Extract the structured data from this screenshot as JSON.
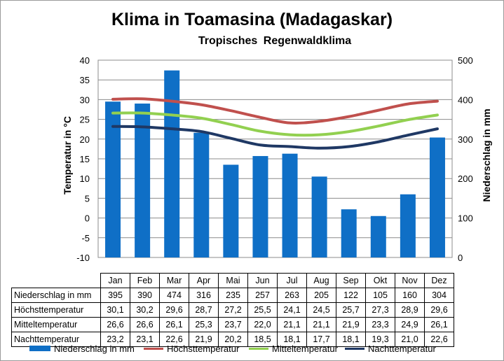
{
  "chart_data": {
    "type": "bar+line",
    "title": "Klima in Toamasina (Madagaskar)",
    "subtitle": "Tropisches Regenwaldklima",
    "categories": [
      "Jan",
      "Feb",
      "Mar",
      "Apr",
      "Mai",
      "Jun",
      "Jul",
      "Aug",
      "Sep",
      "Okt",
      "Nov",
      "Dez"
    ],
    "ylabel_left": "Temperatur in °C",
    "ylabel_right": "Niederschlag in mm",
    "ylim_left": [
      -10,
      40
    ],
    "ylim_right": [
      0,
      500
    ],
    "yticks_left": [
      "40",
      "35",
      "30",
      "25",
      "20",
      "15",
      "10",
      "5",
      "0",
      "-5",
      "-10"
    ],
    "yticks_right": [
      "500",
      "400",
      "300",
      "200",
      "100",
      "0"
    ],
    "grid": true,
    "legend_position": "bottom",
    "series": [
      {
        "name": "Niederschlag in mm",
        "kind": "bar",
        "axis": "right",
        "color": "#0f6fc6",
        "values": [
          395,
          390,
          474,
          316,
          235,
          257,
          263,
          205,
          122,
          105,
          160,
          304
        ],
        "labels": [
          "395",
          "390",
          "474",
          "316",
          "235",
          "257",
          "263",
          "205",
          "122",
          "105",
          "160",
          "304"
        ]
      },
      {
        "name": "Höchsttemperatur",
        "kind": "line",
        "axis": "left",
        "color": "#c0504d",
        "values": [
          30.1,
          30.2,
          29.6,
          28.7,
          27.2,
          25.5,
          24.1,
          24.5,
          25.7,
          27.3,
          28.9,
          29.6
        ],
        "labels": [
          "30,1",
          "30,2",
          "29,6",
          "28,7",
          "27,2",
          "25,5",
          "24,1",
          "24,5",
          "25,7",
          "27,3",
          "28,9",
          "29,6"
        ]
      },
      {
        "name": "Mitteltemperatur",
        "kind": "line",
        "axis": "left",
        "color": "#92d050",
        "values": [
          26.6,
          26.6,
          26.1,
          25.3,
          23.7,
          22.0,
          21.1,
          21.1,
          21.9,
          23.3,
          24.9,
          26.1
        ],
        "labels": [
          "26,6",
          "26,6",
          "26,1",
          "25,3",
          "23,7",
          "22,0",
          "21,1",
          "21,1",
          "21,9",
          "23,3",
          "24,9",
          "26,1"
        ]
      },
      {
        "name": "Nachttemperatur",
        "kind": "line",
        "axis": "left",
        "color": "#1f3864",
        "values": [
          23.2,
          23.1,
          22.6,
          21.9,
          20.2,
          18.5,
          18.1,
          17.7,
          18.1,
          19.3,
          21.0,
          22.6
        ],
        "labels": [
          "23,2",
          "23,1",
          "22,6",
          "21,9",
          "20,2",
          "18,5",
          "18,1",
          "17,7",
          "18,1",
          "19,3",
          "21,0",
          "22,6"
        ]
      }
    ]
  }
}
